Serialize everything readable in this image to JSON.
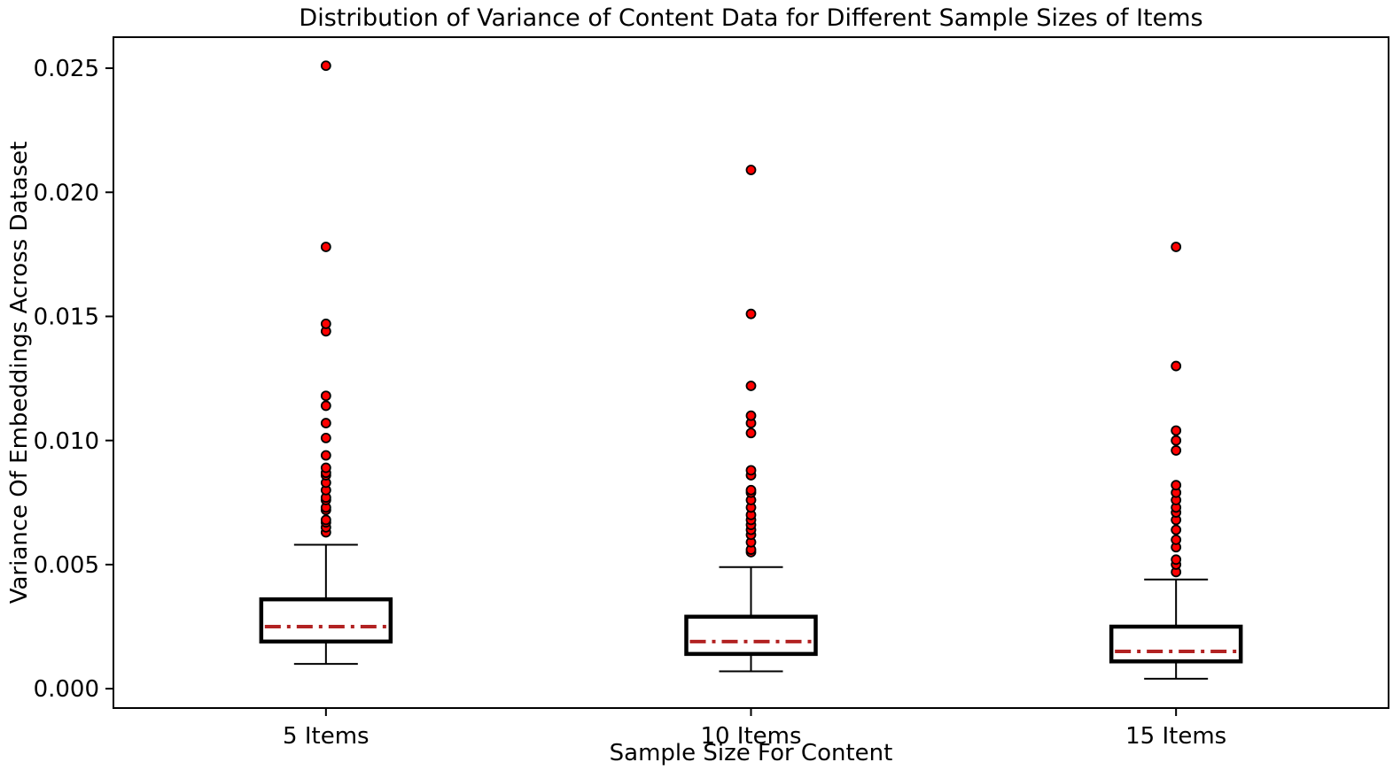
{
  "chart_data": {
    "type": "boxplot",
    "title": "Distribution of Variance of Content Data for Different Sample Sizes of Items",
    "xlabel": "Sample Size For Content",
    "ylabel": "Variance Of Embeddings Across Dataset",
    "categories": [
      "5 Items",
      "10 Items",
      "15 Items"
    ],
    "y_ticks": [
      0.0,
      0.005,
      0.01,
      0.015,
      0.02,
      0.025
    ],
    "y_tick_labels": [
      "0.000",
      "0.005",
      "0.010",
      "0.015",
      "0.020",
      "0.025"
    ],
    "ylim": [
      -0.00078,
      0.02625
    ],
    "grid": false,
    "legend": "none",
    "series": [
      {
        "name": "5 Items",
        "whisker_low": 0.001,
        "q1": 0.0019,
        "median": 0.0025,
        "q3": 0.0036,
        "whisker_high": 0.0058,
        "outliers": [
          0.0063,
          0.0065,
          0.0067,
          0.0068,
          0.0072,
          0.0073,
          0.0076,
          0.0077,
          0.008,
          0.0083,
          0.0086,
          0.0087,
          0.0089,
          0.0094,
          0.0101,
          0.0107,
          0.0114,
          0.0118,
          0.0144,
          0.0147,
          0.0178,
          0.0251
        ]
      },
      {
        "name": "10 Items",
        "whisker_low": 0.0007,
        "q1": 0.0014,
        "median": 0.0019,
        "q3": 0.0029,
        "whisker_high": 0.0049,
        "outliers": [
          0.0055,
          0.0056,
          0.0059,
          0.0062,
          0.0064,
          0.0066,
          0.0068,
          0.007,
          0.0073,
          0.0076,
          0.0079,
          0.008,
          0.0086,
          0.0088,
          0.0103,
          0.0107,
          0.011,
          0.0122,
          0.0151,
          0.0209
        ]
      },
      {
        "name": "15 Items",
        "whisker_low": 0.0004,
        "q1": 0.0011,
        "median": 0.0015,
        "q3": 0.0025,
        "whisker_high": 0.0044,
        "outliers": [
          0.0047,
          0.005,
          0.0052,
          0.0057,
          0.006,
          0.0064,
          0.0068,
          0.0071,
          0.0073,
          0.0076,
          0.0079,
          0.0082,
          0.0096,
          0.01,
          0.0104,
          0.013,
          0.0178
        ]
      }
    ],
    "style": {
      "background": "#ffffff",
      "box_edge_color": "#000000",
      "box_fill_color": "#ffffff",
      "whisker_color": "#000000",
      "median_color": "#b22222",
      "median_linestyle": "dashdot",
      "flier_fill_color": "#ff0000",
      "flier_edge_color": "#000000",
      "spine_color": "#000000"
    }
  }
}
